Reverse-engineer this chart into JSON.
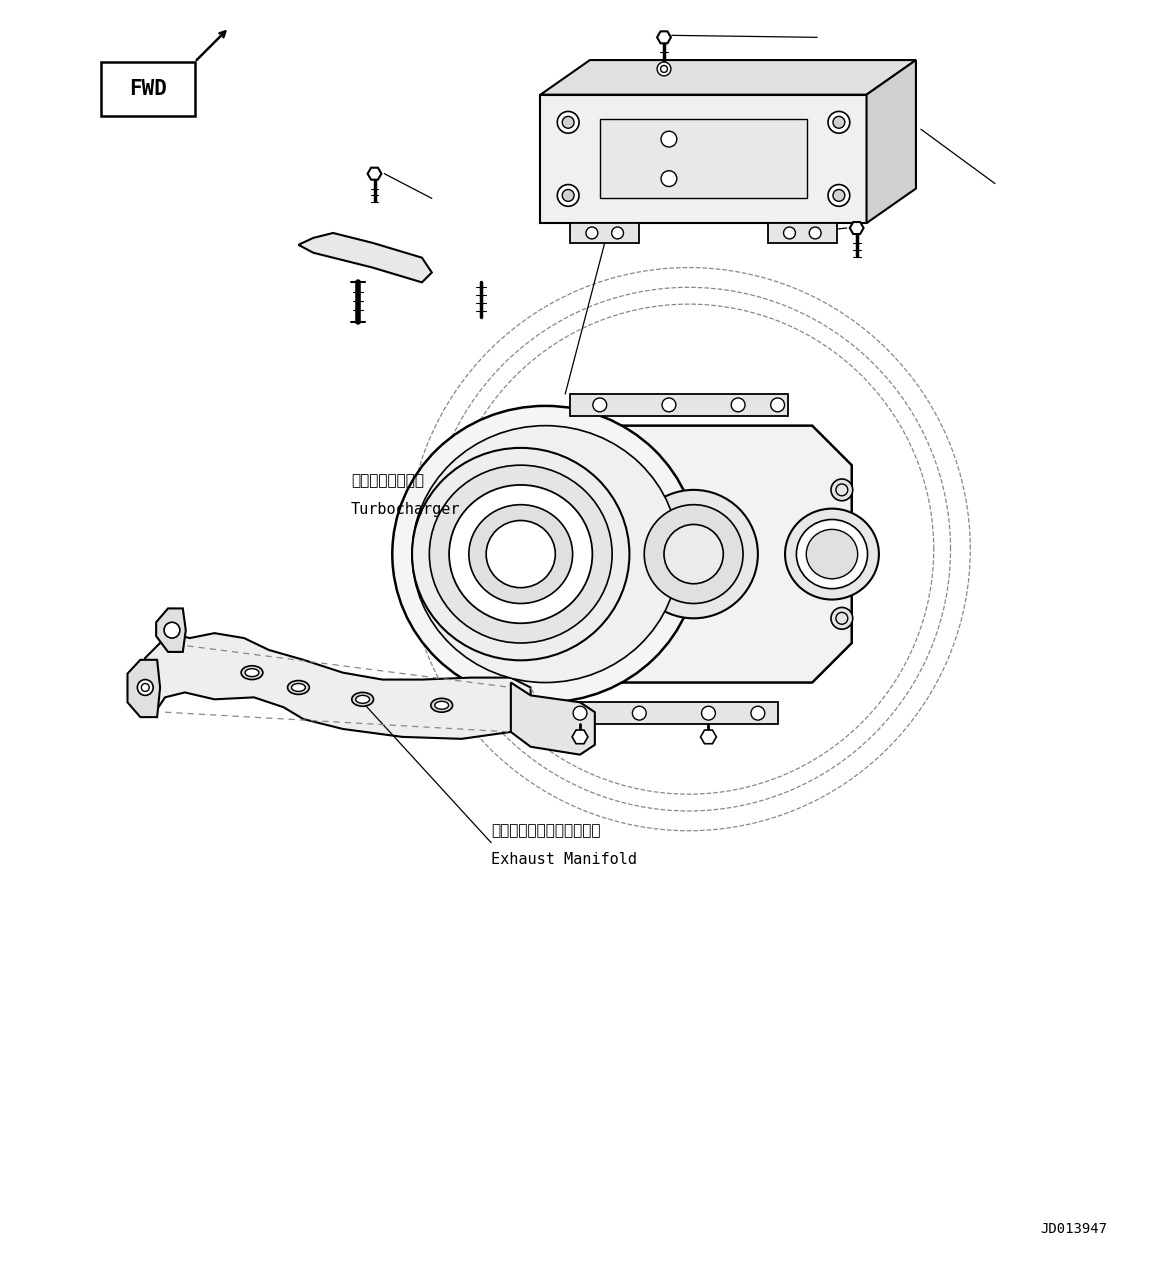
{
  "background_color": "#ffffff",
  "line_color": "#000000",
  "fig_width": 11.63,
  "fig_height": 12.88,
  "dpi": 100,
  "label_turbocharger_jp": "ターボチャージャ",
  "label_turbocharger_en": "Turbocharger",
  "label_exhaust_jp": "エキゾーストマニホールド",
  "label_exhaust_en": "Exhaust Manifold",
  "label_code": "JD013947",
  "label_fwd": "FWD",
  "font_size_label": 11,
  "font_size_code": 10
}
